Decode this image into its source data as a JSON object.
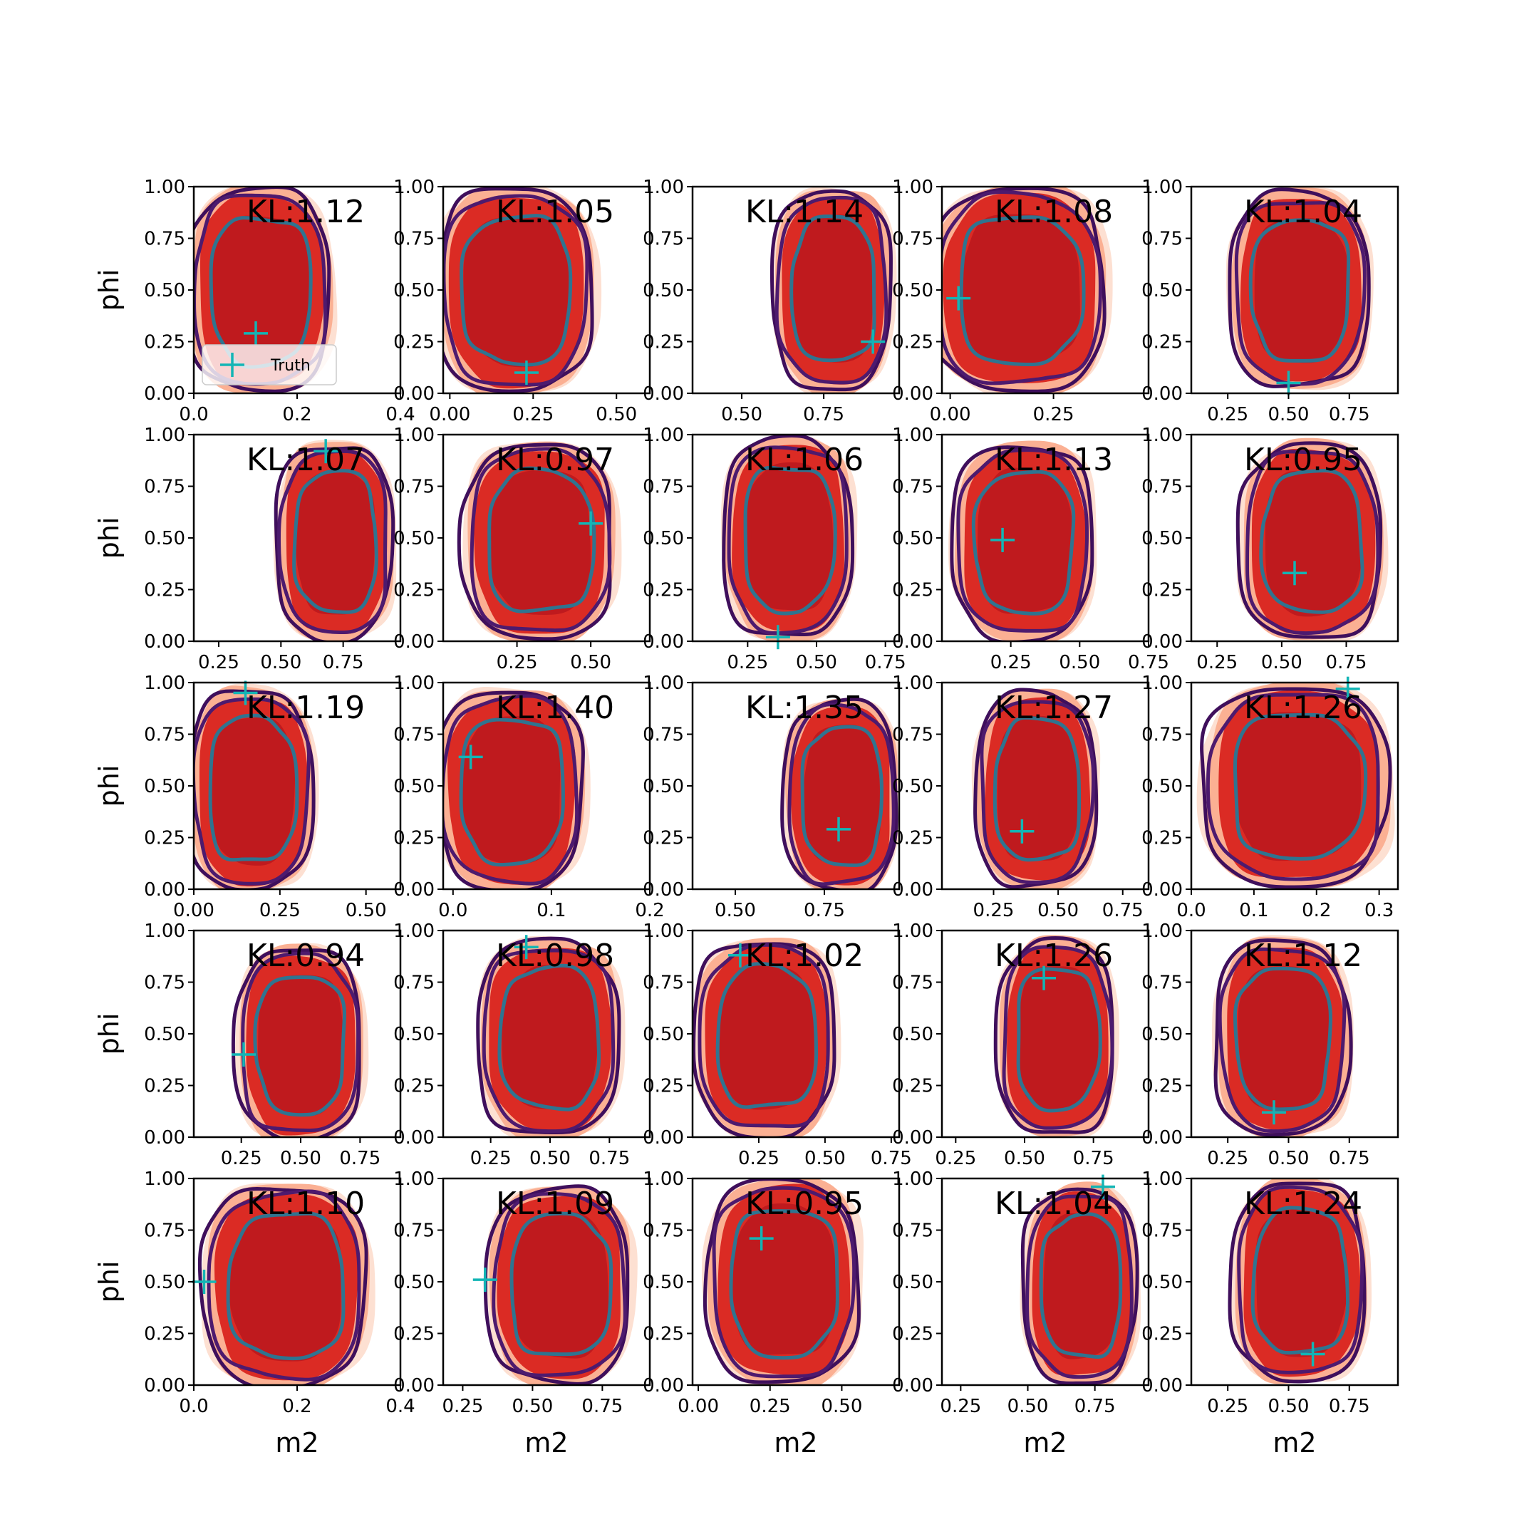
{
  "chart_data": {
    "type": "contour",
    "layout": "5x5 grid",
    "xlabel": "m2",
    "ylabel": "phi",
    "legend": {
      "label": "Truth",
      "placement": "lower-left of first panel"
    },
    "colors": {
      "fill_levels": [
        "#fde0d2",
        "#fbb093",
        "#db2b24",
        "#bf1a1e"
      ],
      "outer_contour": "#3f0f5c",
      "mid_contour": "#4d1a6e",
      "inner_contour": "#2f7490",
      "truth_marker": "#13b5b5"
    },
    "panels": [
      {
        "kl": "KL:1.12",
        "xlim": [
          0,
          0.4
        ],
        "xticks": [
          0,
          0.2,
          0.4
        ],
        "xticklabels": [
          "0.0",
          "0.2",
          "0.4"
        ],
        "cx": 0.13,
        "cy": 0.5,
        "rx": 0.13,
        "ry": 0.48,
        "truth": [
          0.12,
          0.29
        ],
        "legend": true
      },
      {
        "kl": "KL:1.05",
        "xlim": [
          -0.02,
          0.6
        ],
        "xticks": [
          0,
          0.25,
          0.5
        ],
        "xticklabels": [
          "0.00",
          "0.25",
          "0.50"
        ],
        "cx": 0.2,
        "cy": 0.5,
        "rx": 0.22,
        "ry": 0.48,
        "truth": [
          0.23,
          0.1
        ]
      },
      {
        "kl": "KL:1.14",
        "xlim": [
          0.35,
          0.98
        ],
        "xticks": [
          0.5,
          0.75
        ],
        "xticklabels": [
          "0.50",
          "0.75"
        ],
        "cx": 0.78,
        "cy": 0.5,
        "rx": 0.17,
        "ry": 0.47,
        "truth": [
          0.9,
          0.25
        ]
      },
      {
        "kl": "KL:1.08",
        "xlim": [
          -0.02,
          0.48
        ],
        "xticks": [
          0,
          0.25
        ],
        "xticklabels": [
          "0.00",
          "0.25"
        ],
        "cx": 0.17,
        "cy": 0.5,
        "rx": 0.2,
        "ry": 0.48,
        "truth": [
          0.02,
          0.46
        ]
      },
      {
        "kl": "KL:1.04",
        "xlim": [
          0.1,
          0.95
        ],
        "xticks": [
          0.25,
          0.5,
          0.75
        ],
        "xticklabels": [
          "0.25",
          "0.50",
          "0.75"
        ],
        "cx": 0.55,
        "cy": 0.5,
        "rx": 0.27,
        "ry": 0.46,
        "truth": [
          0.5,
          0.05
        ]
      },
      {
        "kl": "KL:1.07",
        "xlim": [
          0.15,
          0.98
        ],
        "xticks": [
          0.25,
          0.5,
          0.75
        ],
        "xticklabels": [
          "0.25",
          "0.50",
          "0.75"
        ],
        "cx": 0.72,
        "cy": 0.48,
        "rx": 0.22,
        "ry": 0.46,
        "truth": [
          0.68,
          0.92
        ]
      },
      {
        "kl": "KL:0.97",
        "xlim": [
          0,
          0.7
        ],
        "xticks": [
          0.25,
          0.5
        ],
        "xticklabels": [
          "0.25",
          "0.50"
        ],
        "cx": 0.33,
        "cy": 0.48,
        "rx": 0.24,
        "ry": 0.46,
        "truth": [
          0.5,
          0.57
        ]
      },
      {
        "kl": "KL:1.06",
        "xlim": [
          0.05,
          0.8
        ],
        "xticks": [
          0.25,
          0.5,
          0.75
        ],
        "xticklabels": [
          "0.25",
          "0.50",
          "0.75"
        ],
        "cx": 0.4,
        "cy": 0.5,
        "rx": 0.22,
        "ry": 0.47,
        "truth": [
          0.36,
          0.02
        ]
      },
      {
        "kl": "KL:1.13",
        "xlim": [
          0,
          0.75
        ],
        "xticks": [
          0.25,
          0.5,
          0.75
        ],
        "xticklabels": [
          "0.25",
          "0.50",
          "0.75"
        ],
        "cx": 0.3,
        "cy": 0.48,
        "rx": 0.24,
        "ry": 0.46,
        "truth": [
          0.22,
          0.49
        ]
      },
      {
        "kl": "KL:0.95",
        "xlim": [
          0.15,
          0.95
        ],
        "xticks": [
          0.25,
          0.5,
          0.75
        ],
        "xticklabels": [
          "0.25",
          "0.50",
          "0.75"
        ],
        "cx": 0.62,
        "cy": 0.48,
        "rx": 0.26,
        "ry": 0.46,
        "truth": [
          0.55,
          0.33
        ]
      },
      {
        "kl": "KL:1.19",
        "xlim": [
          0,
          0.6
        ],
        "xticks": [
          0,
          0.25,
          0.5
        ],
        "xticklabels": [
          "0.00",
          "0.25",
          "0.50"
        ],
        "cx": 0.17,
        "cy": 0.48,
        "rx": 0.17,
        "ry": 0.47,
        "truth": [
          0.15,
          0.95
        ]
      },
      {
        "kl": "KL:1.40",
        "xlim": [
          -0.01,
          0.2
        ],
        "xticks": [
          0,
          0.1,
          0.2
        ],
        "xticklabels": [
          "0.0",
          "0.1",
          "0.2"
        ],
        "cx": 0.06,
        "cy": 0.48,
        "rx": 0.07,
        "ry": 0.47,
        "truth": [
          0.018,
          0.64
        ]
      },
      {
        "kl": "KL:1.35",
        "xlim": [
          0.38,
          0.96
        ],
        "xticks": [
          0.5,
          0.75
        ],
        "xticklabels": [
          "0.50",
          "0.75"
        ],
        "cx": 0.8,
        "cy": 0.45,
        "rx": 0.15,
        "ry": 0.45,
        "truth": [
          0.79,
          0.29
        ]
      },
      {
        "kl": "KL:1.27",
        "xlim": [
          0.05,
          0.85
        ],
        "xticks": [
          0.25,
          0.5,
          0.75
        ],
        "xticklabels": [
          "0.25",
          "0.50",
          "0.75"
        ],
        "cx": 0.42,
        "cy": 0.48,
        "rx": 0.22,
        "ry": 0.46,
        "truth": [
          0.36,
          0.28
        ]
      },
      {
        "kl": "KL:1.26",
        "xlim": [
          0,
          0.33
        ],
        "xticks": [
          0,
          0.1,
          0.2,
          0.3
        ],
        "xticklabels": [
          "0.0",
          "0.1",
          "0.2",
          "0.3"
        ],
        "cx": 0.17,
        "cy": 0.5,
        "rx": 0.14,
        "ry": 0.47,
        "truth": [
          0.25,
          0.97
        ]
      },
      {
        "kl": "KL:0.94",
        "xlim": [
          0.05,
          0.92
        ],
        "xticks": [
          0.25,
          0.5,
          0.75
        ],
        "xticklabels": [
          "0.25",
          "0.50",
          "0.75"
        ],
        "cx": 0.5,
        "cy": 0.45,
        "rx": 0.25,
        "ry": 0.45,
        "truth": [
          0.26,
          0.4
        ]
      },
      {
        "kl": "KL:0.98",
        "xlim": [
          0.05,
          0.92
        ],
        "xticks": [
          0.25,
          0.5,
          0.75
        ],
        "xticklabels": [
          "0.25",
          "0.50",
          "0.75"
        ],
        "cx": 0.5,
        "cy": 0.48,
        "rx": 0.28,
        "ry": 0.46,
        "truth": [
          0.4,
          0.92
        ]
      },
      {
        "kl": "KL:1.02",
        "xlim": [
          0,
          0.78
        ],
        "xticks": [
          0.25,
          0.5,
          0.75
        ],
        "xticklabels": [
          "0.25",
          "0.50",
          "0.75"
        ],
        "cx": 0.28,
        "cy": 0.48,
        "rx": 0.25,
        "ry": 0.46,
        "truth": [
          0.18,
          0.88
        ]
      },
      {
        "kl": "KL:1.26",
        "xlim": [
          0.2,
          0.95
        ],
        "xticks": [
          0.25,
          0.5,
          0.75
        ],
        "xticklabels": [
          "0.25",
          "0.50",
          "0.75"
        ],
        "cx": 0.62,
        "cy": 0.48,
        "rx": 0.2,
        "ry": 0.46,
        "truth": [
          0.57,
          0.77
        ]
      },
      {
        "kl": "KL:1.12",
        "xlim": [
          0.1,
          0.95
        ],
        "xticks": [
          0.25,
          0.5,
          0.75
        ],
        "xticklabels": [
          "0.25",
          "0.50",
          "0.75"
        ],
        "cx": 0.48,
        "cy": 0.48,
        "rx": 0.26,
        "ry": 0.46,
        "truth": [
          0.44,
          0.12
        ]
      },
      {
        "kl": "KL:1.10",
        "xlim": [
          0,
          0.4
        ],
        "xticks": [
          0,
          0.2,
          0.4
        ],
        "xticklabels": [
          "0.0",
          "0.2",
          "0.4"
        ],
        "cx": 0.18,
        "cy": 0.48,
        "rx": 0.15,
        "ry": 0.47,
        "truth": [
          0.02,
          0.5
        ]
      },
      {
        "kl": "KL:1.09",
        "xlim": [
          0.18,
          0.92
        ],
        "xticks": [
          0.25,
          0.5,
          0.75
        ],
        "xticklabels": [
          "0.25",
          "0.50",
          "0.75"
        ],
        "cx": 0.6,
        "cy": 0.48,
        "rx": 0.24,
        "ry": 0.46,
        "truth": [
          0.33,
          0.51
        ]
      },
      {
        "kl": "KL:0.95",
        "xlim": [
          -0.02,
          0.7
        ],
        "xticks": [
          0,
          0.25,
          0.5
        ],
        "xticklabels": [
          "0.00",
          "0.25",
          "0.50"
        ],
        "cx": 0.3,
        "cy": 0.5,
        "rx": 0.25,
        "ry": 0.48,
        "truth": [
          0.22,
          0.71
        ]
      },
      {
        "kl": "KL:1.04",
        "xlim": [
          0.18,
          0.95
        ],
        "xticks": [
          0.25,
          0.5,
          0.75
        ],
        "xticklabels": [
          "0.25",
          "0.50",
          "0.75"
        ],
        "cx": 0.7,
        "cy": 0.48,
        "rx": 0.2,
        "ry": 0.46,
        "truth": [
          0.78,
          0.96
        ]
      },
      {
        "kl": "KL:1.24",
        "xlim": [
          0.1,
          0.95
        ],
        "xticks": [
          0.25,
          0.5,
          0.75
        ],
        "xticklabels": [
          "0.25",
          "0.50",
          "0.75"
        ],
        "cx": 0.55,
        "cy": 0.5,
        "rx": 0.26,
        "ry": 0.47,
        "truth": [
          0.6,
          0.15
        ]
      }
    ],
    "ylim": [
      0,
      1
    ],
    "yticks": [
      0,
      0.25,
      0.5,
      0.75,
      1
    ],
    "yticklabels": [
      "0.00",
      "0.25",
      "0.50",
      "0.75",
      "1.00"
    ]
  }
}
